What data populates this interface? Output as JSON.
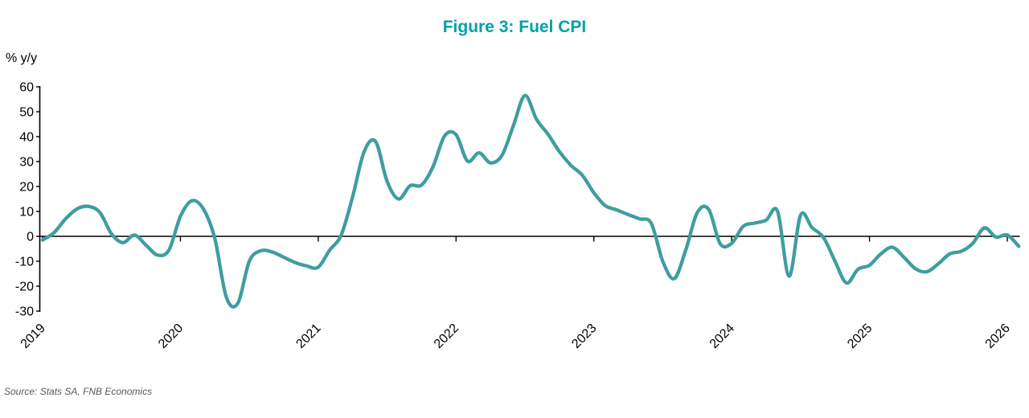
{
  "title": "Figure 3: Fuel CPI",
  "y_axis_label": "% y/y",
  "source": "Source: Stats SA, FNB Economics",
  "colors": {
    "title": "#00A0AA",
    "line": "#3F9D9F",
    "axis": "#000000",
    "tick_text": "#000000",
    "source_text": "#595959"
  },
  "chart_data": {
    "type": "line",
    "title": "Figure 3: Fuel CPI",
    "ylabel": "% y/y",
    "xlabel": "",
    "legend": "none",
    "grid": false,
    "ylim": [
      -30,
      60
    ],
    "y_ticks": [
      60,
      50,
      40,
      30,
      20,
      10,
      0,
      -10,
      -20,
      -30
    ],
    "x_tick_labels": [
      "2019",
      "2020",
      "2021",
      "2022",
      "2023",
      "2024",
      "2025",
      "2026"
    ],
    "series": [
      {
        "name": "Fuel CPI (% y/y)",
        "frequency": "monthly",
        "start": "2019-01",
        "end": "2026-02",
        "values": [
          -1.5,
          1.5,
          7,
          11,
          12,
          9.5,
          1,
          -2.5,
          0.5,
          -3.5,
          -7.5,
          -5.5,
          8,
          14.3,
          11,
          -1,
          -24.5,
          -26.8,
          -10,
          -5.8,
          -6.3,
          -8.4,
          -10.5,
          -11.9,
          -12.4,
          -5.5,
          0.5,
          16,
          34,
          38,
          22,
          15,
          20.3,
          20.6,
          28,
          40.3,
          40.8,
          30.2,
          33.5,
          29.5,
          32.5,
          44.5,
          56.5,
          47,
          41,
          34,
          28.5,
          24.5,
          17.5,
          12.3,
          10.6,
          8.7,
          7,
          5.2,
          -10,
          -17,
          -5.5,
          9.5,
          10.8,
          -3,
          -2.8,
          4,
          5.3,
          6.5,
          10,
          -16,
          8.5,
          3.5,
          -0.5,
          -10,
          -18.7,
          -13.2,
          -11.6,
          -7,
          -4.4,
          -8.4,
          -13,
          -14.2,
          -11,
          -7,
          -6,
          -2.8,
          3.4,
          -0.3,
          0.5,
          -4
        ]
      }
    ]
  }
}
